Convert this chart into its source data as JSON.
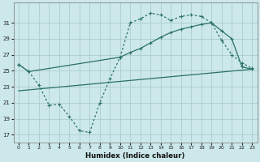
{
  "xlabel": "Humidex (Indice chaleur)",
  "xlim": [
    -0.5,
    23.5
  ],
  "ylim": [
    16.0,
    33.5
  ],
  "yticks": [
    17,
    19,
    21,
    23,
    25,
    27,
    29,
    31
  ],
  "xticks": [
    0,
    1,
    2,
    3,
    4,
    5,
    6,
    7,
    8,
    9,
    10,
    11,
    12,
    13,
    14,
    15,
    16,
    17,
    18,
    19,
    20,
    21,
    22,
    23
  ],
  "bg_color": "#cce8ea",
  "grid_color": "#aacdd0",
  "line_color": "#2a7068",
  "series1_x": [
    0,
    1,
    2,
    3,
    4,
    5,
    6,
    7,
    8,
    9,
    10,
    11,
    12,
    13,
    14,
    15,
    16,
    17,
    18,
    19,
    20,
    21,
    22,
    23
  ],
  "series1_y": [
    25.8,
    24.9,
    23.2,
    20.7,
    20.8,
    19.3,
    17.5,
    17.3,
    21.0,
    24.0,
    26.7,
    31.0,
    31.5,
    32.2,
    32.0,
    31.3,
    31.8,
    32.0,
    31.8,
    31.0,
    28.8,
    27.0,
    26.0,
    25.3
  ],
  "series2_x": [
    0,
    1,
    10,
    11,
    12,
    13,
    14,
    15,
    16,
    17,
    18,
    19,
    20,
    21,
    22,
    23
  ],
  "series2_y": [
    25.8,
    24.9,
    26.7,
    27.3,
    27.8,
    28.5,
    29.2,
    29.8,
    30.2,
    30.5,
    30.8,
    31.0,
    30.0,
    29.0,
    25.5,
    25.2
  ],
  "series3_x": [
    0,
    23
  ],
  "series3_y": [
    22.5,
    25.2
  ]
}
